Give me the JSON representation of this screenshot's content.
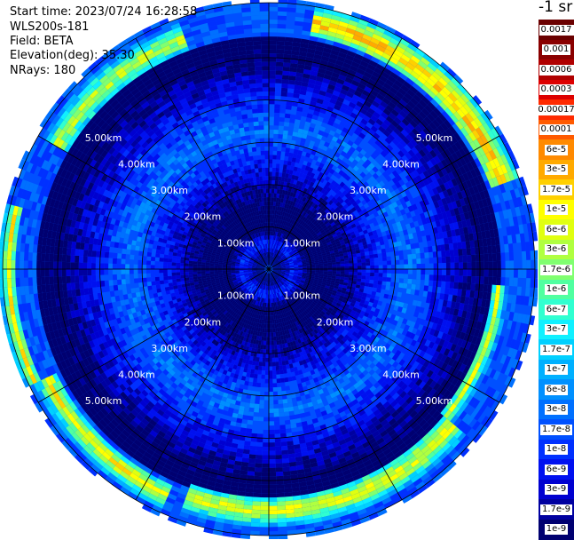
{
  "info": {
    "start_time": "Start time: 2023/07/24 16:28:58",
    "instrument": "WLS200s-181",
    "field": "Field: BETA",
    "elevation": "Elevation(deg): 35.30",
    "nrays": "NRays: 180"
  },
  "colorbar": {
    "title": "-1 sr",
    "entries": [
      {
        "label": "0.0017",
        "color": "#6a0000"
      },
      {
        "label": "0.001",
        "color": "#8a0000"
      },
      {
        "label": "0.0006",
        "color": "#b00000"
      },
      {
        "label": "0.0003",
        "color": "#dd0000"
      },
      {
        "label": "0.00017",
        "color": "#ff2a00"
      },
      {
        "label": "0.0001",
        "color": "#ff5a00"
      },
      {
        "label": "6e-5",
        "color": "#ff8a00"
      },
      {
        "label": "3e-5",
        "color": "#ffaa00"
      },
      {
        "label": "1.7e-5",
        "color": "#ffd000"
      },
      {
        "label": "1e-5",
        "color": "#ffff00"
      },
      {
        "label": "6e-6",
        "color": "#e0ff10"
      },
      {
        "label": "3e-6",
        "color": "#b0ff40"
      },
      {
        "label": "1.7e-6",
        "color": "#80ff70"
      },
      {
        "label": "1e-6",
        "color": "#50ffa0"
      },
      {
        "label": "6e-7",
        "color": "#30ffd0"
      },
      {
        "label": "3e-7",
        "color": "#10f0ff"
      },
      {
        "label": "1.7e-7",
        "color": "#00d0ff"
      },
      {
        "label": "1e-7",
        "color": "#00b0ff"
      },
      {
        "label": "6e-8",
        "color": "#0090ff"
      },
      {
        "label": "3e-8",
        "color": "#0070ff"
      },
      {
        "label": "1.7e-8",
        "color": "#0050ff"
      },
      {
        "label": "1e-8",
        "color": "#0030ff"
      },
      {
        "label": "6e-9",
        "color": "#0010f0"
      },
      {
        "label": "3e-9",
        "color": "#0000d0"
      },
      {
        "label": "1.7e-9",
        "color": "#0000a0"
      },
      {
        "label": "1e-9",
        "color": "#000070"
      }
    ]
  },
  "chart_data": {
    "type": "heatmap",
    "projection": "polar-ppi",
    "field": "BETA",
    "elevation_deg": 35.3,
    "n_rays": 180,
    "range_rings_km": [
      1.0,
      2.0,
      3.0,
      4.0,
      5.0
    ],
    "ring_labels": [
      "1.00km",
      "2.00km",
      "3.00km",
      "4.00km",
      "5.00km"
    ],
    "max_range_km": 6.3,
    "radial_lines_deg": [
      0,
      30,
      60,
      90,
      120,
      150,
      180,
      210,
      240,
      270,
      300,
      330
    ],
    "color_scale": "log",
    "value_range": [
      1e-09,
      0.0017
    ],
    "background_level_index": 20,
    "features": [
      {
        "description": "near-field low backscatter core",
        "range_km": [
          0,
          1.1
        ],
        "level_index": 21
      },
      {
        "description": "background",
        "range_km": [
          1.1,
          5.4
        ],
        "level_index": 19
      },
      {
        "description": "high backscatter band NE",
        "azimuth_deg": [
          10,
          70
        ],
        "range_km": [
          5.5,
          6.2
        ],
        "level_index": 7
      },
      {
        "description": "high backscatter band NW",
        "azimuth_deg": [
          300,
          340
        ],
        "range_km": [
          5.4,
          6.1
        ],
        "level_index": 10
      },
      {
        "description": "high backscatter band W",
        "azimuth_deg": [
          245,
          285
        ],
        "range_km": [
          5.9,
          6.3
        ],
        "level_index": 9
      },
      {
        "description": "high backscatter band SW",
        "azimuth_deg": [
          205,
          245
        ],
        "range_km": [
          5.5,
          6.1
        ],
        "level_index": 9
      },
      {
        "description": "high backscatter band S/SE",
        "azimuth_deg": [
          130,
          200
        ],
        "range_km": [
          5.3,
          6.0
        ],
        "level_index": 9
      },
      {
        "description": "high backscatter band E/SE",
        "azimuth_deg": [
          95,
          130
        ],
        "range_km": [
          5.2,
          5.6
        ],
        "level_index": 10
      }
    ]
  }
}
